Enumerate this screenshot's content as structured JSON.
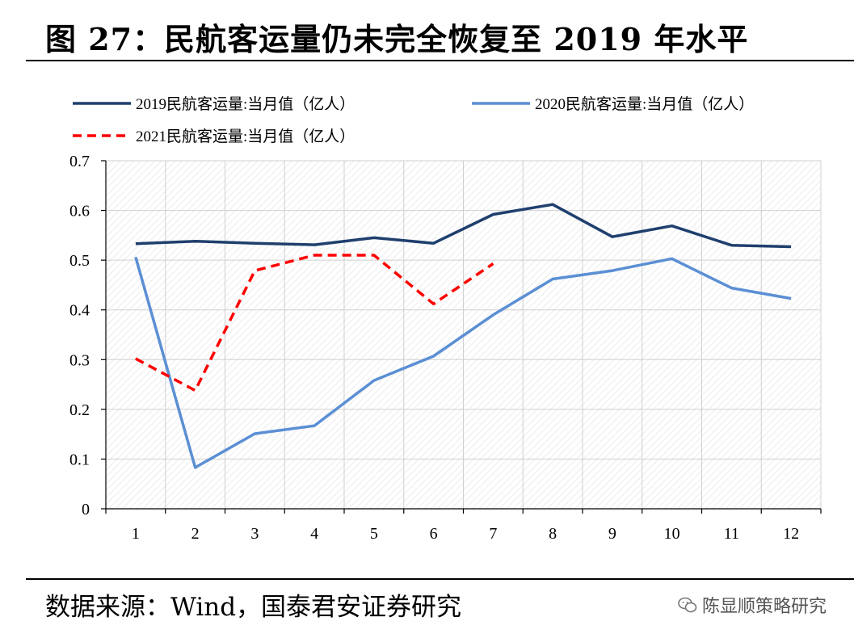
{
  "figure": {
    "title": "图 27：民航客运量仍未完全恢复至 2019 年水平",
    "source": "数据来源：Wind，国泰君安证券研究",
    "watermark": "陈显顺策略研究",
    "watermark_icon": "wechat-icon"
  },
  "chart_data": {
    "type": "line",
    "x": [
      1,
      2,
      3,
      4,
      5,
      6,
      7,
      8,
      9,
      10,
      11,
      12
    ],
    "ylim": [
      0,
      0.7
    ],
    "yticks": [
      0,
      0.1,
      0.2,
      0.3,
      0.4,
      0.5,
      0.6,
      0.7
    ],
    "grid": true,
    "legend_position": "top",
    "series": [
      {
        "name": "2019民航客运量:当月值（亿人）",
        "color": "#1f3f6e",
        "dash": "solid",
        "values": [
          0.533,
          0.538,
          0.534,
          0.531,
          0.545,
          0.534,
          0.592,
          0.612,
          0.547,
          0.569,
          0.53,
          0.527
        ]
      },
      {
        "name": "2020民航客运量:当月值（亿人）",
        "color": "#5b8fd4",
        "dash": "solid",
        "values": [
          0.506,
          0.083,
          0.151,
          0.167,
          0.258,
          0.307,
          0.39,
          0.462,
          0.479,
          0.503,
          0.444,
          0.423
        ]
      },
      {
        "name": "2021民航客运量:当月值（亿人）",
        "color": "#ff0000",
        "dash": "dashed",
        "values": [
          0.302,
          0.238,
          0.479,
          0.51,
          0.51,
          0.412,
          0.493,
          null,
          null,
          null,
          null,
          null
        ]
      }
    ]
  }
}
